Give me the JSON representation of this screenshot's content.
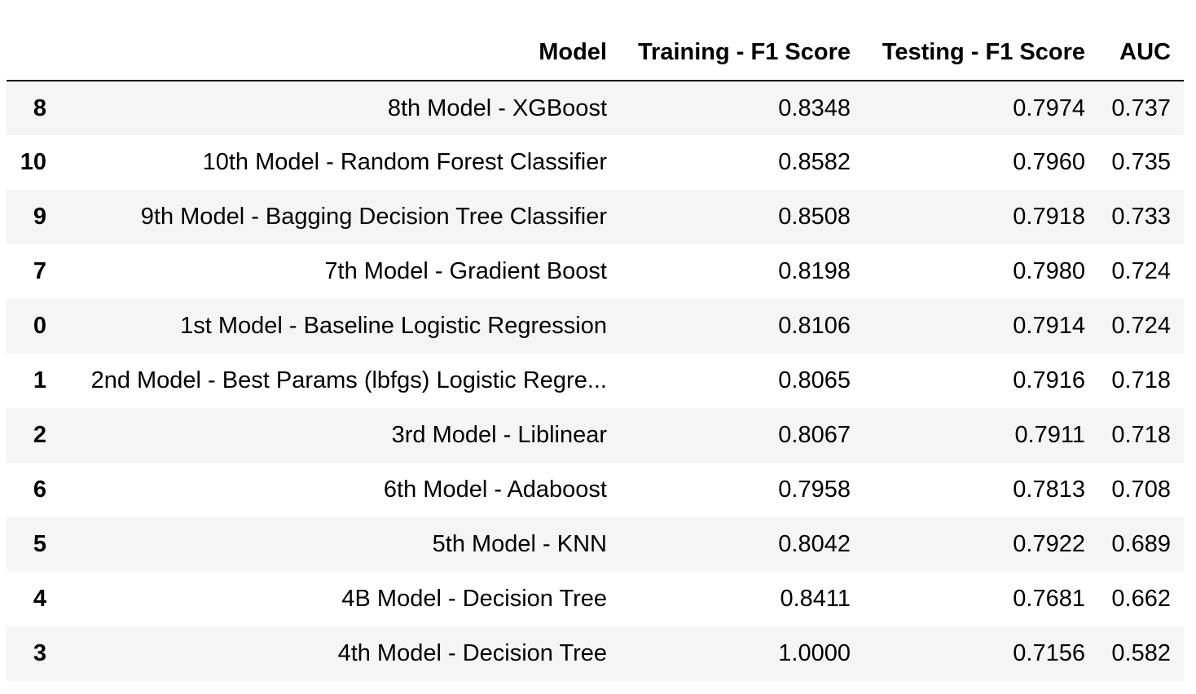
{
  "table": {
    "columns": [
      "",
      "Model",
      "Training - F1 Score",
      "Testing - F1 Score",
      "AUC"
    ],
    "rows": [
      {
        "index": "8",
        "model": "8th Model - XGBoost",
        "train_f1": "0.8348",
        "test_f1": "0.7974",
        "auc": "0.737"
      },
      {
        "index": "10",
        "model": "10th Model - Random Forest Classifier",
        "train_f1": "0.8582",
        "test_f1": "0.7960",
        "auc": "0.735"
      },
      {
        "index": "9",
        "model": "9th Model - Bagging Decision Tree Classifier",
        "train_f1": "0.8508",
        "test_f1": "0.7918",
        "auc": "0.733"
      },
      {
        "index": "7",
        "model": "7th Model - Gradient Boost",
        "train_f1": "0.8198",
        "test_f1": "0.7980",
        "auc": "0.724"
      },
      {
        "index": "0",
        "model": "1st Model - Baseline Logistic Regression",
        "train_f1": "0.8106",
        "test_f1": "0.7914",
        "auc": "0.724"
      },
      {
        "index": "1",
        "model": "2nd Model - Best Params (lbfgs) Logistic Regre...",
        "train_f1": "0.8065",
        "test_f1": "0.7916",
        "auc": "0.718"
      },
      {
        "index": "2",
        "model": "3rd Model - Liblinear",
        "train_f1": "0.8067",
        "test_f1": "0.7911",
        "auc": "0.718"
      },
      {
        "index": "6",
        "model": "6th Model - Adaboost",
        "train_f1": "0.7958",
        "test_f1": "0.7813",
        "auc": "0.708"
      },
      {
        "index": "5",
        "model": "5th Model - KNN",
        "train_f1": "0.8042",
        "test_f1": "0.7922",
        "auc": "0.689"
      },
      {
        "index": "4",
        "model": "4B Model - Decision Tree",
        "train_f1": "0.8411",
        "test_f1": "0.7681",
        "auc": "0.662"
      },
      {
        "index": "3",
        "model": "4th Model - Decision Tree",
        "train_f1": "1.0000",
        "test_f1": "0.7156",
        "auc": "0.582"
      }
    ]
  }
}
